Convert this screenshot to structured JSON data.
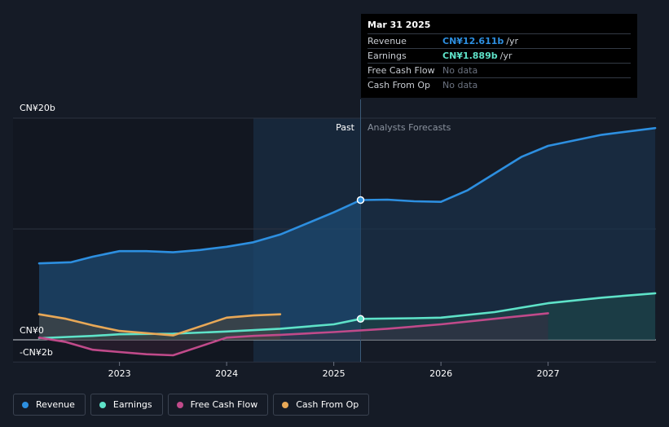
{
  "chart_data": {
    "type": "line",
    "y_labels": [
      "CN¥20b",
      "CN¥0",
      "-CN¥2b"
    ],
    "x_ticks": [
      "2023",
      "2024",
      "2025",
      "2026",
      "2027"
    ],
    "ylim": [
      -2,
      20
    ],
    "xlim": [
      2022.25,
      2028.0
    ],
    "divider_x": 2025.25,
    "past_label": "Past",
    "forecast_label": "Analysts Forecasts",
    "series": [
      {
        "name": "Revenue",
        "color": "#2d8fe0",
        "points": [
          [
            2022.25,
            6.9
          ],
          [
            2022.55,
            7.0
          ],
          [
            2022.75,
            7.5
          ],
          [
            2023.0,
            8.0
          ],
          [
            2023.25,
            8.0
          ],
          [
            2023.5,
            7.9
          ],
          [
            2023.75,
            8.1
          ],
          [
            2024.0,
            8.4
          ],
          [
            2024.25,
            8.8
          ],
          [
            2024.5,
            9.5
          ],
          [
            2024.75,
            10.5
          ],
          [
            2025.0,
            11.5
          ],
          [
            2025.25,
            12.611
          ],
          [
            2025.5,
            12.65
          ],
          [
            2025.75,
            12.5
          ],
          [
            2026.0,
            12.45
          ],
          [
            2026.25,
            13.5
          ],
          [
            2026.5,
            15.0
          ],
          [
            2026.75,
            16.5
          ],
          [
            2027.0,
            17.5
          ],
          [
            2027.5,
            18.5
          ],
          [
            2028.0,
            19.1
          ]
        ],
        "marker": [
          2025.25,
          12.611
        ],
        "forecast_from": 2025.25
      },
      {
        "name": "Earnings",
        "color": "#5ee2c8",
        "points": [
          [
            2022.25,
            0.15
          ],
          [
            2022.75,
            0.35
          ],
          [
            2023.0,
            0.5
          ],
          [
            2023.5,
            0.55
          ],
          [
            2024.0,
            0.75
          ],
          [
            2024.5,
            1.0
          ],
          [
            2025.0,
            1.4
          ],
          [
            2025.25,
            1.889
          ],
          [
            2025.75,
            1.95
          ],
          [
            2026.0,
            2.0
          ],
          [
            2026.5,
            2.5
          ],
          [
            2027.0,
            3.3
          ],
          [
            2027.5,
            3.8
          ],
          [
            2028.0,
            4.2
          ]
        ],
        "marker": [
          2025.25,
          1.889
        ],
        "forecast_from": 2025.25
      },
      {
        "name": "Free Cash Flow",
        "color": "#c04a8a",
        "points": [
          [
            2022.25,
            0.2
          ],
          [
            2022.5,
            -0.2
          ],
          [
            2022.75,
            -0.9
          ],
          [
            2023.0,
            -1.1
          ],
          [
            2023.25,
            -1.3
          ],
          [
            2023.5,
            -1.4
          ],
          [
            2023.75,
            -0.6
          ],
          [
            2024.0,
            0.2
          ],
          [
            2024.25,
            0.35
          ],
          [
            2024.5,
            0.45
          ],
          [
            2025.0,
            0.7
          ],
          [
            2025.5,
            1.0
          ],
          [
            2026.0,
            1.4
          ],
          [
            2026.5,
            1.9
          ],
          [
            2027.0,
            2.4
          ]
        ],
        "forecast_from": 2025.25
      },
      {
        "name": "Cash From Op",
        "color": "#e8a857",
        "points": [
          [
            2022.25,
            2.3
          ],
          [
            2022.5,
            1.9
          ],
          [
            2022.75,
            1.3
          ],
          [
            2023.0,
            0.8
          ],
          [
            2023.25,
            0.6
          ],
          [
            2023.5,
            0.4
          ],
          [
            2023.75,
            1.2
          ],
          [
            2024.0,
            2.0
          ],
          [
            2024.25,
            2.2
          ],
          [
            2024.5,
            2.3
          ]
        ]
      }
    ]
  },
  "tooltip": {
    "date": "Mar 31 2025",
    "rows": [
      {
        "name": "Revenue",
        "value": "CN¥12.611b",
        "unit": "/yr",
        "color": "#2d8fe0"
      },
      {
        "name": "Earnings",
        "value": "CN¥1.889b",
        "unit": "/yr",
        "color": "#5ee2c8"
      },
      {
        "name": "Free Cash Flow",
        "value": "No data"
      },
      {
        "name": "Cash From Op",
        "value": "No data"
      }
    ]
  },
  "legend": [
    {
      "label": "Revenue",
      "color": "#2d8fe0"
    },
    {
      "label": "Earnings",
      "color": "#5ee2c8"
    },
    {
      "label": "Free Cash Flow",
      "color": "#c04a8a"
    },
    {
      "label": "Cash From Op",
      "color": "#e8a857"
    }
  ]
}
